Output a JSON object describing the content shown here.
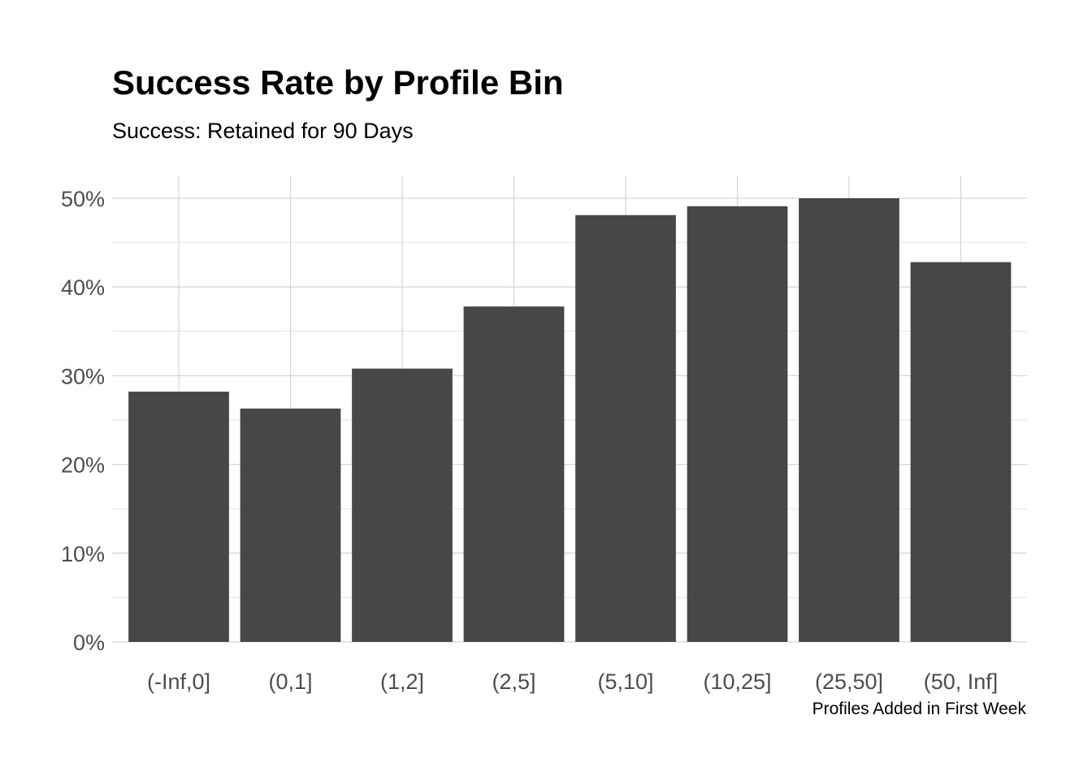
{
  "chart_data": {
    "type": "bar",
    "title": "Success Rate by Profile Bin",
    "subtitle": "Success: Retained for 90 Days",
    "xlabel": "Profiles Added in First Week",
    "ylabel": "",
    "categories": [
      "(-Inf,0]",
      "(0,1]",
      "(1,2]",
      "(2,5]",
      "(5,10]",
      "(10,25]",
      "(25,50]",
      "(50, Inf]"
    ],
    "values": [
      0.282,
      0.263,
      0.308,
      0.378,
      0.481,
      0.491,
      0.5,
      0.428
    ],
    "ylim": [
      0,
      0.5
    ],
    "yticks": [
      0,
      0.1,
      0.2,
      0.3,
      0.4,
      0.5
    ],
    "ytick_labels": [
      "0%",
      "10%",
      "20%",
      "30%",
      "40%",
      "50%"
    ],
    "grid": true,
    "legend": "none",
    "bar_color": "#474747",
    "grid_color": "#d6d6d6"
  }
}
